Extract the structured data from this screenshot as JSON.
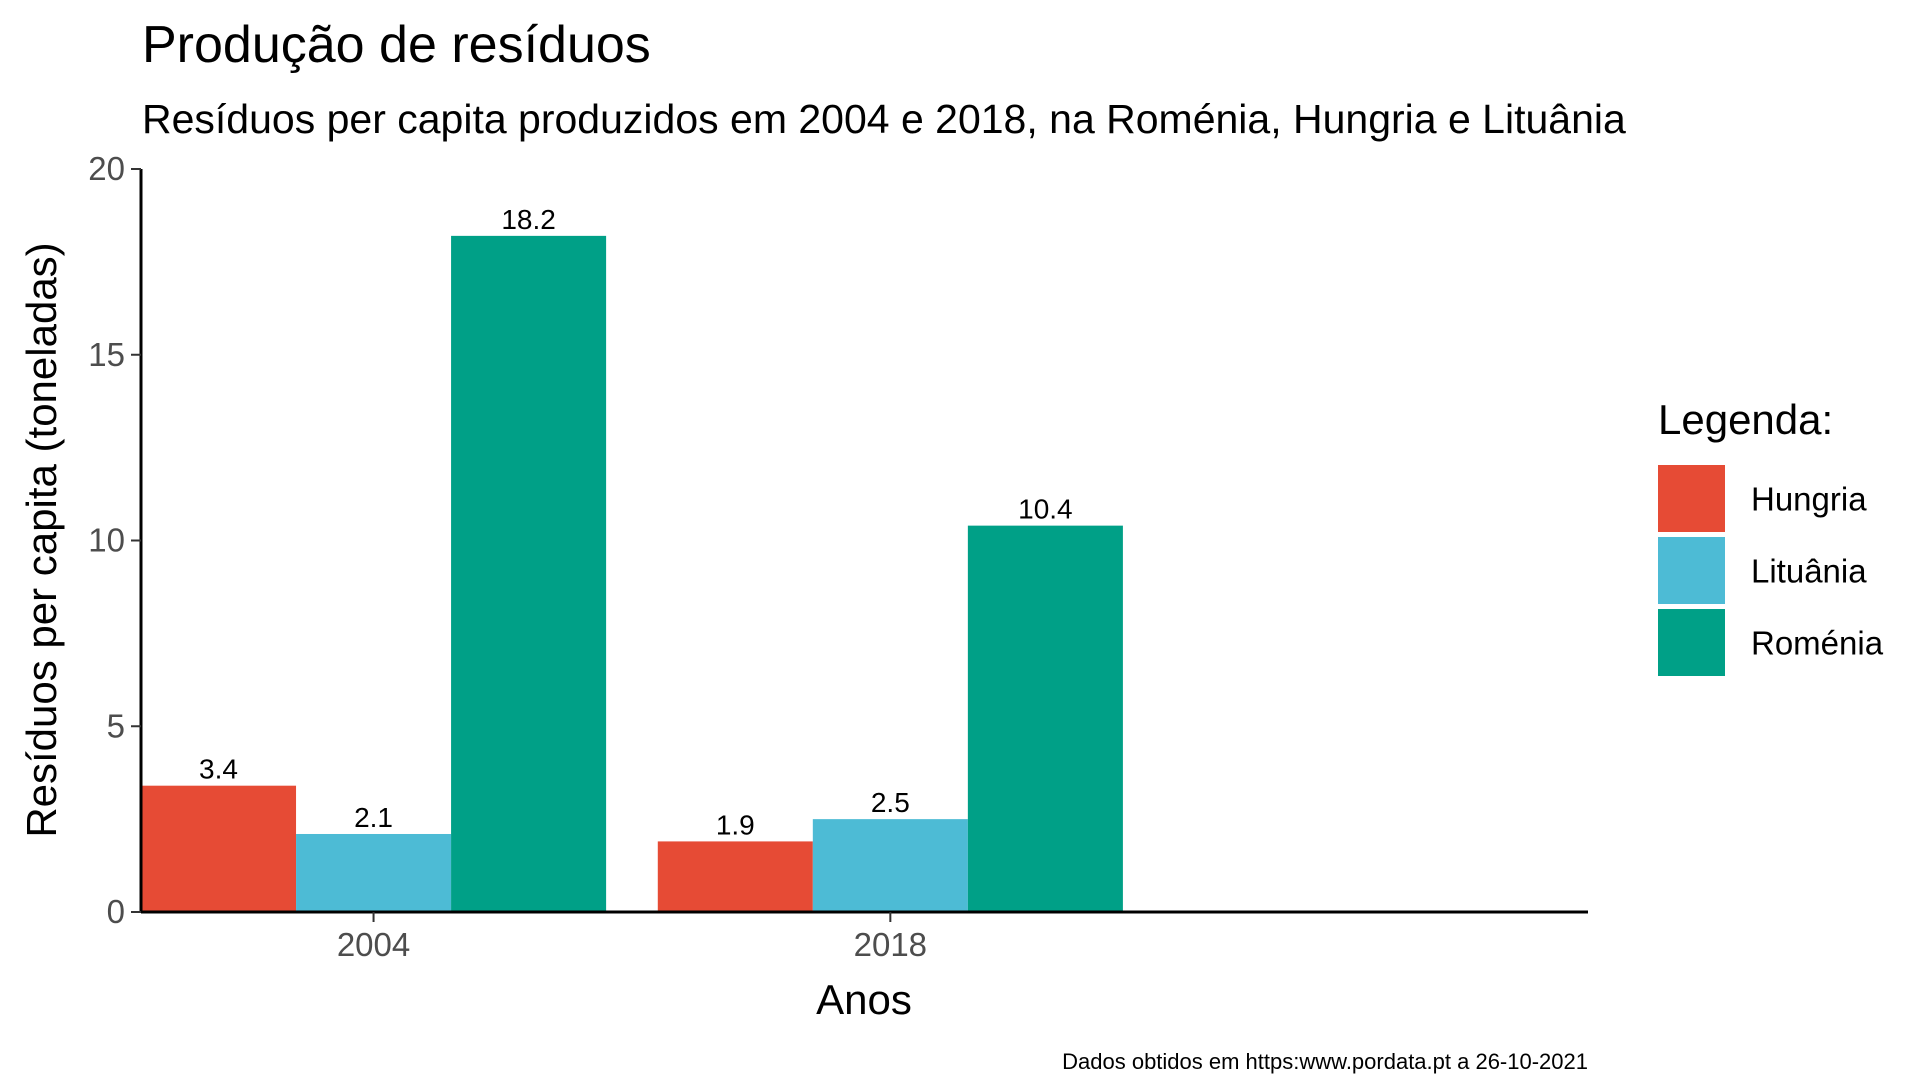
{
  "chart_data": {
    "type": "bar",
    "title": "Produção de resíduos",
    "subtitle": "Resíduos per capita produzidos em 2004 e 2018, na Roménia, Hungria e Lituânia",
    "xlabel": "Anos",
    "ylabel": "Resíduos per capita (toneladas)",
    "caption": "Dados obtidos em https:www.pordata.pt a 26-10-2021",
    "categories": [
      "2004",
      "2018"
    ],
    "series": [
      {
        "name": "Hungria",
        "color": "#E64B35",
        "values": [
          3.4,
          1.9
        ]
      },
      {
        "name": "Lituânia",
        "color": "#4DBBD5",
        "values": [
          2.1,
          2.5
        ]
      },
      {
        "name": "Roménia",
        "color": "#00A087",
        "values": [
          18.2,
          10.4
        ]
      }
    ],
    "ylim": [
      0,
      20
    ],
    "yticks": [
      0,
      5,
      10,
      15,
      20
    ],
    "grid": false,
    "legend": {
      "title": "Legenda:",
      "position": "right"
    }
  }
}
